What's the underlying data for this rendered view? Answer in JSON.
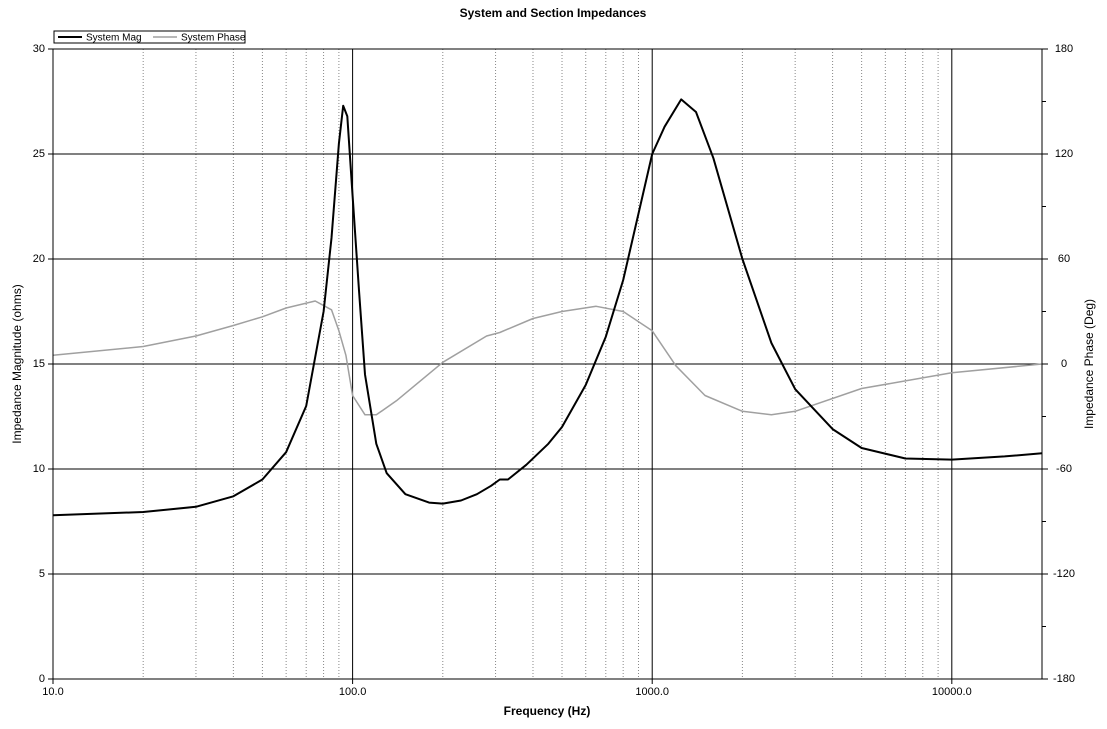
{
  "chart_data": {
    "type": "line",
    "title": "System and Section Impedances",
    "x_label": "Frequency (Hz)",
    "y_label": "Impedance Magnitude (ohms)",
    "y2_label": "Impedance Phase (Deg)",
    "x_scale": "log",
    "grid": true,
    "legend": "top-left",
    "xlim": [
      10,
      20000
    ],
    "xticks": [
      {
        "value": 10,
        "label": "10.0"
      },
      {
        "value": 100,
        "label": "100.0"
      },
      {
        "value": 1000,
        "label": "1000.0"
      },
      {
        "value": 10000,
        "label": "10000.0"
      }
    ],
    "ylim": [
      0,
      30
    ],
    "yticks": [
      0,
      5,
      10,
      15,
      20,
      25,
      30
    ],
    "y2lim": [
      -180,
      180
    ],
    "y2ticks": [
      -180,
      -120,
      -60,
      0,
      60,
      120,
      180
    ],
    "series": [
      {
        "name": "System Mag",
        "color": "#000000",
        "axis": "y",
        "x": [
          10,
          20,
          30,
          40,
          50,
          60,
          70,
          80,
          85,
          90,
          93,
          96,
          100,
          105,
          110,
          120,
          130,
          150,
          180,
          200,
          230,
          260,
          290,
          310,
          330,
          380,
          450,
          500,
          600,
          700,
          800,
          1000,
          1100,
          1250,
          1400,
          1600,
          2000,
          2500,
          3000,
          4000,
          5000,
          7000,
          10000,
          15000,
          20000
        ],
        "values": [
          7.8,
          7.95,
          8.2,
          8.7,
          9.5,
          10.8,
          13.0,
          17.5,
          21,
          25.5,
          27.3,
          26.8,
          23,
          18.5,
          14.5,
          11.2,
          9.8,
          8.8,
          8.4,
          8.35,
          8.5,
          8.8,
          9.2,
          9.5,
          9.5,
          10.2,
          11.2,
          12.0,
          14.0,
          16.3,
          19.0,
          25.0,
          26.3,
          27.6,
          27.0,
          24.8,
          20.0,
          16.0,
          13.8,
          11.9,
          11.0,
          10.5,
          10.45,
          10.6,
          10.75
        ]
      },
      {
        "name": "System Phase",
        "color": "#a0a0a0",
        "axis": "y2",
        "x": [
          10,
          20,
          30,
          40,
          50,
          60,
          75,
          85,
          90,
          95,
          100,
          110,
          120,
          140,
          200,
          280,
          310,
          400,
          500,
          650,
          800,
          1000,
          1200,
          1500,
          2000,
          2500,
          3000,
          5000,
          10000,
          20000
        ],
        "values": [
          5,
          10,
          16,
          22,
          27,
          32,
          36,
          31,
          19,
          5,
          -18,
          -29,
          -29,
          -21,
          1,
          16,
          18,
          26,
          30,
          33,
          30,
          19,
          -1,
          -18,
          -27,
          -29,
          -27,
          -14,
          -5,
          0
        ]
      }
    ]
  }
}
